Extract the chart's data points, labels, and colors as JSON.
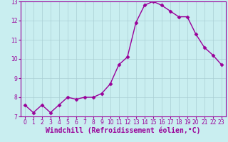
{
  "x": [
    0,
    1,
    2,
    3,
    4,
    5,
    6,
    7,
    8,
    9,
    10,
    11,
    12,
    13,
    14,
    15,
    16,
    17,
    18,
    19,
    20,
    21,
    22,
    23
  ],
  "y": [
    7.6,
    7.2,
    7.6,
    7.2,
    7.6,
    8.0,
    7.9,
    8.0,
    8.0,
    8.2,
    8.7,
    9.7,
    10.1,
    11.9,
    12.8,
    13.0,
    12.8,
    12.5,
    12.2,
    12.2,
    11.3,
    10.6,
    10.2,
    9.7
  ],
  "line_color": "#990099",
  "marker": "D",
  "marker_size": 2.5,
  "bg_color": "#c9eef0",
  "grid_color": "#aacfd4",
  "xlabel": "Windchill (Refroidissement éolien,°C)",
  "xlabel_color": "#990099",
  "tick_color": "#990099",
  "spine_color": "#990099",
  "ylim": [
    7,
    13
  ],
  "xlim_min": -0.5,
  "xlim_max": 23.5,
  "yticks": [
    7,
    8,
    9,
    10,
    11,
    12,
    13
  ],
  "xticks": [
    0,
    1,
    2,
    3,
    4,
    5,
    6,
    7,
    8,
    9,
    10,
    11,
    12,
    13,
    14,
    15,
    16,
    17,
    18,
    19,
    20,
    21,
    22,
    23
  ],
  "tick_fontsize": 5.5,
  "xlabel_fontsize": 7.0,
  "line_width": 1.0
}
